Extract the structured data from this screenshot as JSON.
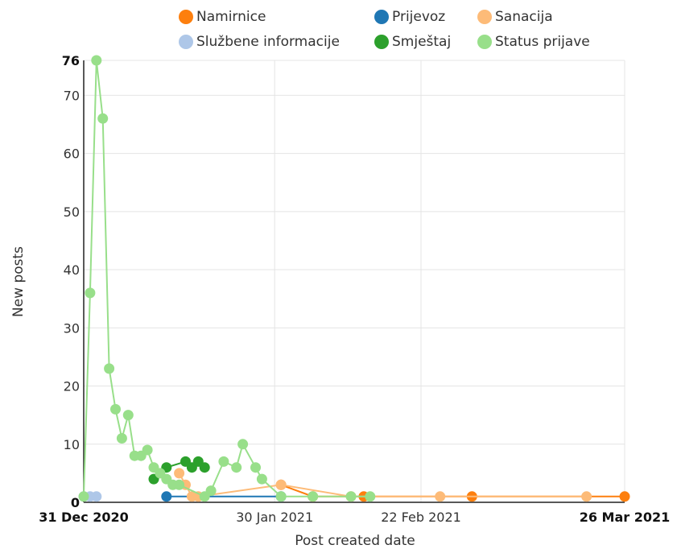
{
  "chart_data": {
    "type": "line",
    "title": "",
    "xlabel": "Post created date",
    "ylabel": "New posts",
    "x_range": [
      "2020-12-31",
      "2021-03-26"
    ],
    "ylim": [
      0,
      76
    ],
    "y_ticks": [
      0,
      10,
      20,
      30,
      40,
      50,
      60,
      70,
      76
    ],
    "x_ticks": [
      {
        "date": "2020-12-31",
        "label": "31 Dec 2020",
        "bold": true
      },
      {
        "date": "2021-01-30",
        "label": "30 Jan 2021",
        "bold": false
      },
      {
        "date": "2021-02-22",
        "label": "22 Feb 2021",
        "bold": false
      },
      {
        "date": "2021-03-26",
        "label": "26 Mar 2021",
        "bold": true
      }
    ],
    "grid": true,
    "legend_position": "top",
    "series": [
      {
        "name": "Namirnice",
        "color": "#fd7f0e",
        "points": [
          [
            "2021-01-31",
            3
          ],
          [
            "2021-02-05",
            1
          ],
          [
            "2021-02-13",
            1
          ],
          [
            "2021-03-02",
            1
          ],
          [
            "2021-03-26",
            1
          ]
        ]
      },
      {
        "name": "Prijevoz",
        "color": "#1f77b4",
        "points": [
          [
            "2021-01-13",
            1
          ],
          [
            "2021-01-31",
            1
          ]
        ]
      },
      {
        "name": "Sanacija",
        "color": "#fdbb78",
        "points": [
          [
            "2021-01-15",
            5
          ],
          [
            "2021-01-16",
            3
          ],
          [
            "2021-01-17",
            1
          ],
          [
            "2021-01-18",
            1
          ],
          [
            "2021-01-31",
            3
          ],
          [
            "2021-02-11",
            1
          ],
          [
            "2021-02-25",
            1
          ],
          [
            "2021-03-20",
            1
          ]
        ]
      },
      {
        "name": "Službene informacije",
        "color": "#aec7e8",
        "points": [
          [
            "2020-12-31",
            1
          ],
          [
            "2021-01-01",
            1
          ],
          [
            "2021-01-02",
            1
          ]
        ]
      },
      {
        "name": "Smještaj",
        "color": "#2ca02c",
        "points": [
          [
            "2021-01-11",
            4
          ],
          [
            "2021-01-13",
            6
          ],
          [
            "2021-01-16",
            7
          ],
          [
            "2021-01-17",
            6
          ],
          [
            "2021-01-18",
            7
          ],
          [
            "2021-01-19",
            6
          ]
        ]
      },
      {
        "name": "Status prijave",
        "color": "#98df8a",
        "points": [
          [
            "2020-12-31",
            1
          ],
          [
            "2021-01-01",
            36
          ],
          [
            "2021-01-02",
            76
          ],
          [
            "2021-01-03",
            66
          ],
          [
            "2021-01-04",
            23
          ],
          [
            "2021-01-05",
            16
          ],
          [
            "2021-01-06",
            11
          ],
          [
            "2021-01-07",
            15
          ],
          [
            "2021-01-08",
            8
          ],
          [
            "2021-01-09",
            8
          ],
          [
            "2021-01-10",
            9
          ],
          [
            "2021-01-11",
            6
          ],
          [
            "2021-01-12",
            5
          ],
          [
            "2021-01-13",
            4
          ],
          [
            "2021-01-14",
            3
          ],
          [
            "2021-01-15",
            3
          ],
          [
            "2021-01-19",
            1
          ],
          [
            "2021-01-20",
            2
          ],
          [
            "2021-01-22",
            7
          ],
          [
            "2021-01-24",
            6
          ],
          [
            "2021-01-25",
            10
          ],
          [
            "2021-01-27",
            6
          ],
          [
            "2021-01-28",
            4
          ],
          [
            "2021-01-31",
            1
          ],
          [
            "2021-02-05",
            1
          ],
          [
            "2021-02-11",
            1
          ],
          [
            "2021-02-14",
            1
          ]
        ]
      }
    ]
  }
}
